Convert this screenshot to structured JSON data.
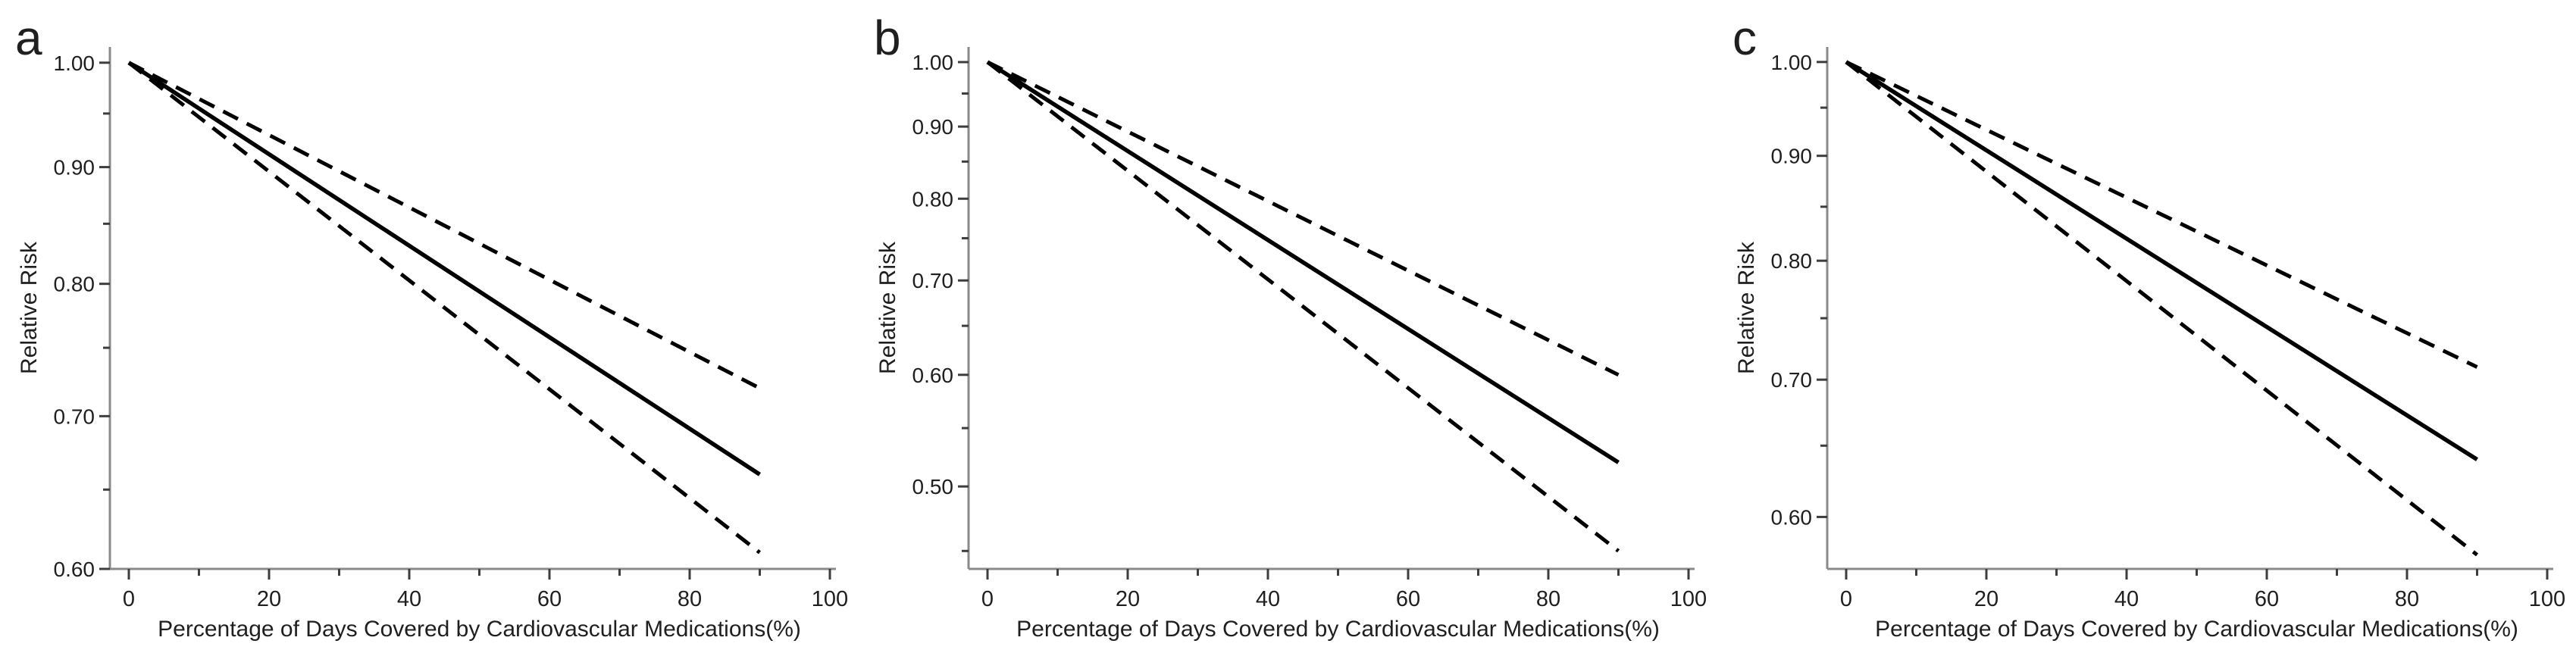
{
  "figure": {
    "description": "Three-panel figure of relative risk versus medication adherence",
    "background_color": "#ffffff"
  },
  "colors": {
    "line": "#000000",
    "axis_line": "#8a8a8a",
    "tick_mark": "#3d3d3d",
    "text": "#1f1f1f"
  },
  "chart_data": [
    {
      "type": "line",
      "panel_label": "a",
      "title": "",
      "xlabel": "Percentage of Days Covered by Cardiovascular Medications(%)",
      "ylabel": "Relative Risk",
      "x_scale": "linear",
      "y_scale": "log",
      "xlim": [
        0,
        100
      ],
      "x_ticks": [
        0,
        20,
        40,
        60,
        80,
        100
      ],
      "x_minor_ticks": [
        10,
        30,
        50,
        70,
        90
      ],
      "ylim": [
        0.6,
        1.016
      ],
      "y_ticks": [
        1.0,
        0.9,
        0.8,
        0.7,
        0.6
      ],
      "y_minor_ticks": [
        0.95,
        0.85,
        0.75,
        0.65
      ],
      "y_tick_decimals": 2,
      "grid": false,
      "legend": "none",
      "series": [
        {
          "name": "upper-95%-confidence-limit",
          "style": "dashed",
          "x": [
            0,
            90
          ],
          "y": [
            1.0,
            0.72
          ]
        },
        {
          "name": "lower-95%-confidence-limit",
          "style": "dashed",
          "x": [
            0,
            90
          ],
          "y": [
            1.0,
            0.61
          ]
        },
        {
          "name": "relative-risk-estimate",
          "style": "solid",
          "x": [
            0,
            90
          ],
          "y": [
            1.0,
            0.66
          ]
        }
      ]
    },
    {
      "type": "line",
      "panel_label": "b",
      "title": "",
      "xlabel": "Percentage of Days Covered by Cardiovascular Medications(%)",
      "ylabel": "Relative Risk",
      "x_scale": "linear",
      "y_scale": "log",
      "xlim": [
        0,
        100
      ],
      "x_ticks": [
        0,
        20,
        40,
        60,
        80,
        100
      ],
      "x_minor_ticks": [
        10,
        30,
        50,
        70,
        90
      ],
      "ylim": [
        0.437,
        1.025
      ],
      "y_ticks": [
        1.0,
        0.9,
        0.8,
        0.7,
        0.6,
        0.5
      ],
      "y_minor_ticks": [
        0.95,
        0.85,
        0.75,
        0.65,
        0.55,
        0.45
      ],
      "y_tick_decimals": 2,
      "grid": false,
      "legend": "none",
      "series": [
        {
          "name": "upper-95%-confidence-limit",
          "style": "dashed",
          "x": [
            0,
            90
          ],
          "y": [
            1.0,
            0.6
          ]
        },
        {
          "name": "lower-95%-confidence-limit",
          "style": "dashed",
          "x": [
            0,
            90
          ],
          "y": [
            1.0,
            0.45
          ]
        },
        {
          "name": "relative-risk-estimate",
          "style": "solid",
          "x": [
            0,
            90
          ],
          "y": [
            1.0,
            0.52
          ]
        }
      ]
    },
    {
      "type": "line",
      "panel_label": "c",
      "title": "",
      "xlabel": "Percentage of Days Covered by Cardiovascular Medications(%)",
      "ylabel": "Relative Risk",
      "x_scale": "linear",
      "y_scale": "log",
      "xlim": [
        0,
        100
      ],
      "x_ticks": [
        0,
        20,
        40,
        60,
        80,
        100
      ],
      "x_minor_ticks": [
        10,
        30,
        50,
        70,
        90
      ],
      "ylim": [
        0.566,
        1.017
      ],
      "y_ticks": [
        1.0,
        0.9,
        0.8,
        0.7,
        0.6
      ],
      "y_minor_ticks": [
        0.95,
        0.85,
        0.75,
        0.65
      ],
      "y_tick_decimals": 2,
      "grid": false,
      "legend": "none",
      "series": [
        {
          "name": "upper-95%-confidence-limit",
          "style": "dashed",
          "x": [
            0,
            90
          ],
          "y": [
            1.0,
            0.71
          ]
        },
        {
          "name": "lower-95%-confidence-limit",
          "style": "dashed",
          "x": [
            0,
            90
          ],
          "y": [
            1.0,
            0.575
          ]
        },
        {
          "name": "relative-risk-estimate",
          "style": "solid",
          "x": [
            0,
            90
          ],
          "y": [
            1.0,
            0.64
          ]
        }
      ]
    }
  ]
}
